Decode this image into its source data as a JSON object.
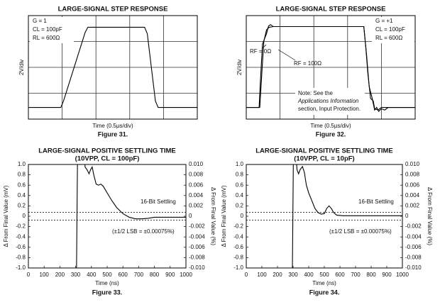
{
  "chart_data": [
    {
      "type": "line",
      "title": "LARGE-SIGNAL STEP RESPONSE",
      "caption": "Figure 31.",
      "x_label": "Time (0.5µs/div)",
      "y_label": "2V/div",
      "xlim": [
        0,
        2.5
      ],
      "xticks": [
        0,
        0.5,
        1,
        1.5,
        2,
        2.5
      ],
      "ylim": [
        -4,
        4
      ],
      "yticks": [
        -4,
        -2,
        0,
        2,
        4
      ],
      "grid": true,
      "tick_labels": false,
      "annotations": [
        "G = 1",
        "CL = 100pF",
        "RL = 600Ω"
      ],
      "series": [
        {
          "color": "#000000",
          "x": [
            0,
            0.48,
            0.52,
            0.84,
            0.88,
            1.72,
            1.76,
            1.88,
            1.92,
            2.5
          ],
          "values": [
            -3.1,
            -3.1,
            -2.6,
            2.7,
            3.1,
            3.1,
            2.6,
            -2.6,
            -3.1,
            -3.1
          ]
        }
      ]
    },
    {
      "type": "line",
      "title": "LARGE-SIGNAL STEP RESPONSE",
      "caption": "Figure 32.",
      "x_label": "Time (0.5µs/div)",
      "y_label": "2V/div",
      "xlim": [
        0,
        2.5
      ],
      "xticks": [
        0,
        0.5,
        1,
        1.5,
        2,
        2.5
      ],
      "ylim": [
        -4,
        4
      ],
      "yticks": [
        -4,
        -2,
        0,
        2,
        4
      ],
      "grid": true,
      "tick_labels": false,
      "annotations": [
        "G = +1",
        "CL = 100pF",
        "RL = 600Ω"
      ],
      "note": [
        "Note: See the",
        "Applications Information",
        "section, Input Protection."
      ],
      "series": [
        {
          "name": "RF = 0Ω",
          "color": "#000000",
          "x": [
            0,
            0.19,
            0.21,
            0.24,
            0.27,
            0.3,
            0.33,
            0.36,
            0.4,
            1.74,
            1.78,
            1.82,
            1.86,
            1.9,
            1.93,
            1.96,
            2.0,
            2.05,
            2.1,
            2.5
          ],
          "values": [
            -3.1,
            -3.1,
            -1,
            1.8,
            2.2,
            2.6,
            3.2,
            3.3,
            3.15,
            3.15,
            1,
            -1.5,
            -2.3,
            -3.3,
            -3.1,
            -3.4,
            -3.2,
            -3.3,
            -3.1,
            -3.1
          ]
        },
        {
          "name": "RF = 100Ω",
          "color": "#000000",
          "x": [
            0,
            0.2,
            0.23,
            0.26,
            0.3,
            0.34,
            0.4,
            1.74,
            1.77,
            1.8,
            1.84,
            1.88,
            1.9,
            1.95,
            2.0,
            2.5
          ],
          "values": [
            -3.1,
            -3.1,
            -0.5,
            2.0,
            2.9,
            3.1,
            3.15,
            3.15,
            1.5,
            -0.5,
            -2.4,
            -2.6,
            -3.2,
            -3.3,
            -3.1,
            -3.1
          ]
        }
      ]
    },
    {
      "type": "line",
      "title": "LARGE-SIGNAL POSITIVE SETTLING TIME",
      "subtitle": "(10VPP, CL = 100pF)",
      "caption": "Figure 33.",
      "x_label": "Time (ns)",
      "y_label": "Δ From Final Value (mV)",
      "y2_label": "Δ From Final Value (%)",
      "xlim": [
        0,
        1000
      ],
      "xticks": [
        0,
        100,
        200,
        300,
        400,
        500,
        600,
        700,
        800,
        900,
        1000
      ],
      "ylim": [
        -1,
        1
      ],
      "yticks": [
        {
          "value": 1,
          "label": "1.0"
        },
        0.8,
        0.6,
        0.4,
        0.2,
        0,
        -0.2,
        -0.4,
        -0.6,
        -0.8,
        {
          "value": -1,
          "label": "-1.0"
        }
      ],
      "y2lim": [
        -0.01,
        0.01
      ],
      "y2ticks": [
        {
          "value": 0.01,
          "label": "0.010"
        },
        0.008,
        0.006,
        0.004,
        0.002,
        0,
        -0.002,
        -0.004,
        -0.006,
        -0.008,
        {
          "value": -0.01,
          "label": "-0.010"
        }
      ],
      "grid": false,
      "tick_labels": true,
      "reference_lines": [
        0.075,
        -0.075
      ],
      "annotations": [
        "16-Bit Settling",
        "(±1/2 LSB = ±0.00075%)"
      ],
      "series": [
        {
          "color": "#000000",
          "x": [
            305,
            312,
            355,
            360,
            372,
            385,
            395,
            405,
            415,
            430,
            445,
            460,
            475,
            500,
            530,
            560,
            600,
            640,
            680,
            720,
            760,
            800,
            850,
            900,
            1000
          ],
          "values": [
            -1.2,
            1.2,
            1.2,
            0.95,
            0.9,
            0.82,
            0.9,
            0.95,
            0.8,
            0.62,
            0.6,
            0.62,
            0.58,
            0.45,
            0.3,
            0.17,
            0.05,
            -0.02,
            -0.05,
            -0.05,
            -0.04,
            -0.02,
            -0.02,
            -0.02,
            -0.02
          ]
        }
      ]
    },
    {
      "type": "line",
      "title": "LARGE-SIGNAL POSITIVE SETTLING TIME",
      "subtitle": "(10VPP, CL = 10pF)",
      "caption": "Figure 34.",
      "x_label": "Time (ns)",
      "y_label": "Δ From Final Value (mV)",
      "y2_label": "Δ From Final Value (%)",
      "xlim": [
        0,
        1000
      ],
      "xticks": [
        0,
        100,
        200,
        300,
        400,
        500,
        600,
        700,
        800,
        900,
        1000
      ],
      "ylim": [
        -1,
        1
      ],
      "yticks": [
        {
          "value": 1,
          "label": "1.0"
        },
        0.8,
        0.6,
        0.4,
        0.2,
        0,
        -0.2,
        -0.4,
        -0.6,
        -0.8,
        {
          "value": -1,
          "label": "-1.0"
        }
      ],
      "y2lim": [
        -0.01,
        0.01
      ],
      "y2ticks": [
        {
          "value": 0.01,
          "label": "0.010"
        },
        0.008,
        0.006,
        0.004,
        0.002,
        0,
        -0.002,
        -0.004,
        -0.006,
        -0.008,
        {
          "value": -0.01,
          "label": "-0.010"
        }
      ],
      "grid": false,
      "tick_labels": true,
      "reference_lines": [
        0.075,
        -0.075
      ],
      "annotations": [
        "16-Bit Settling",
        "(±1/2 LSB = ±0.00075%)"
      ],
      "series": [
        {
          "color": "#000000",
          "x": [
            295,
            302,
            318,
            325,
            335,
            345,
            360,
            372,
            385,
            400,
            420,
            440,
            460,
            480,
            500,
            515,
            530,
            545,
            560,
            580,
            620,
            700,
            800,
            1000
          ],
          "values": [
            -1.2,
            1.2,
            1.2,
            0.9,
            0.82,
            0.9,
            0.96,
            0.85,
            0.6,
            0.45,
            0.3,
            0.15,
            0.07,
            0.04,
            0.05,
            0.15,
            0.2,
            0.15,
            0.07,
            0.02,
            0.01,
            0.01,
            0.01,
            0.01
          ]
        }
      ]
    }
  ]
}
